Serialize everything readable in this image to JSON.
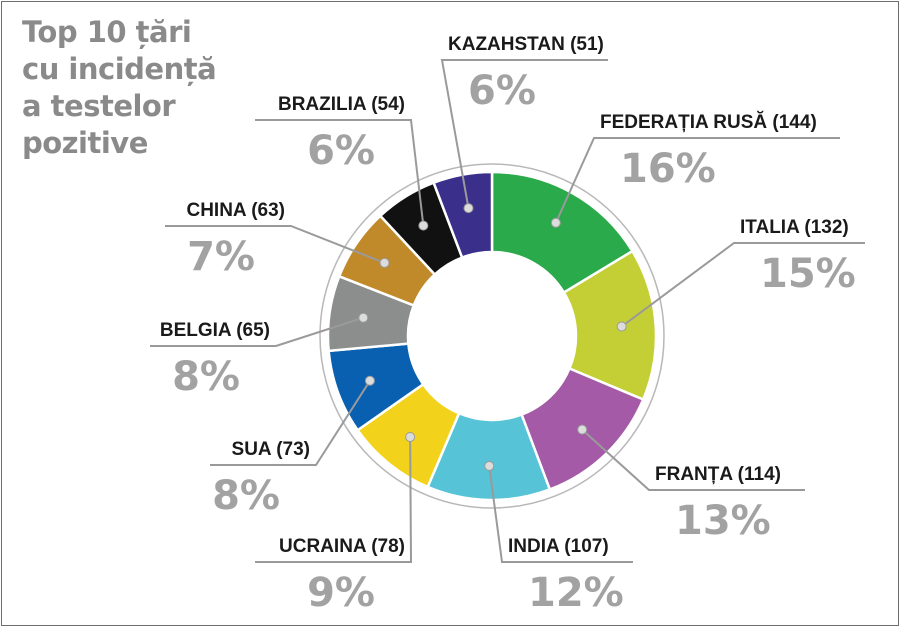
{
  "title_lines": [
    "Top 10 țări",
    "cu incidență",
    "a testelor",
    "pozitive"
  ],
  "chart_data": {
    "type": "pie",
    "variant": "donut",
    "title": "Top 10 țări cu incidența a testelor pozitive",
    "slices": [
      {
        "label": "FEDERAȚIA RUSĂ (144)",
        "value": 144,
        "percent": "16%",
        "color": "#2aaa4a"
      },
      {
        "label": "ITALIA (132)",
        "value": 132,
        "percent": "15%",
        "color": "#c3cf35"
      },
      {
        "label": "FRANȚA (114)",
        "value": 114,
        "percent": "13%",
        "color": "#a45aa6"
      },
      {
        "label": "INDIA (107)",
        "value": 107,
        "percent": "12%",
        "color": "#56c3d6"
      },
      {
        "label": "UCRAINA (78)",
        "value": 78,
        "percent": "9%",
        "color": "#f2d21a"
      },
      {
        "label": "SUA (73)",
        "value": 73,
        "percent": "8%",
        "color": "#0a60b0"
      },
      {
        "label": "BELGIA (65)",
        "value": 65,
        "percent": "8%",
        "color": "#8c8e8e"
      },
      {
        "label": "CHINA (63)",
        "value": 63,
        "percent": "7%",
        "color": "#c0892a"
      },
      {
        "label": "BRAZILIA (54)",
        "value": 54,
        "percent": "6%",
        "color": "#111111"
      },
      {
        "label": "KAZAHSTAN (51)",
        "value": 51,
        "percent": "6%",
        "color": "#3a2f8a"
      }
    ]
  }
}
